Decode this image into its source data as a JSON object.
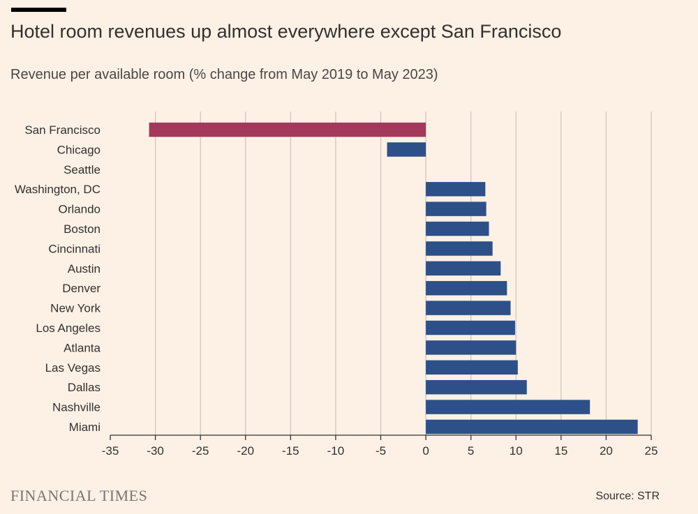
{
  "header": {
    "title": "Hotel room revenues up almost everywhere except San Francisco",
    "subtitle": "Revenue per available room (% change from May 2019 to May 2023)"
  },
  "footer": {
    "brand": "FINANCIAL TIMES",
    "source": "Source: STR"
  },
  "colors": {
    "background": "#FDF1E6",
    "highlight": "#A3395A",
    "bar": "#2D5088",
    "gridline": "#CFC6BD",
    "axis": "#33302E"
  },
  "chart_data": {
    "type": "bar",
    "orientation": "horizontal",
    "title": "Hotel room revenues up almost everywhere except San Francisco",
    "subtitle": "Revenue per available room (% change from May 2019 to May 2023)",
    "xlabel": "",
    "ylabel": "",
    "xlim": [
      -35,
      25
    ],
    "xticks": [
      -35,
      -30,
      -25,
      -20,
      -15,
      -10,
      -5,
      0,
      5,
      10,
      15,
      20,
      25
    ],
    "grid": true,
    "highlight_category": "San Francisco",
    "categories": [
      "San Francisco",
      "Chicago",
      "Seattle",
      "Washington, DC",
      "Orlando",
      "Boston",
      "Cincinnati",
      "Austin",
      "Denver",
      "New York",
      "Los Angeles",
      "Atlanta",
      "Las Vegas",
      "Dallas",
      "Nashville",
      "Miami"
    ],
    "values": [
      -30.7,
      -4.3,
      0,
      6.6,
      6.7,
      7.0,
      7.4,
      8.3,
      9.0,
      9.4,
      9.9,
      10.0,
      10.2,
      11.2,
      18.2,
      23.5
    ]
  }
}
